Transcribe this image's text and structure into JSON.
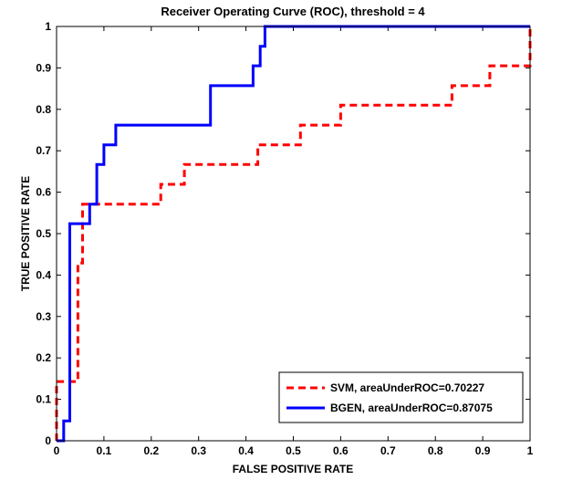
{
  "chart_data": {
    "type": "line",
    "title": "Receiver Operating Curve (ROC), threshold = 4",
    "xlabel": "FALSE POSITIVE RATE",
    "ylabel": "TRUE POSITIVE RATE",
    "xlim": [
      0,
      1
    ],
    "ylim": [
      0,
      1
    ],
    "xticks": [
      "0",
      "0.1",
      "0.2",
      "0.3",
      "0.4",
      "0.5",
      "0.6",
      "0.7",
      "0.8",
      "0.9",
      "1"
    ],
    "yticks": [
      "0",
      "0.1",
      "0.2",
      "0.3",
      "0.4",
      "0.5",
      "0.6",
      "0.7",
      "0.8",
      "0.9",
      "1"
    ],
    "grid": false,
    "legend_position": "bottom-right",
    "series": [
      {
        "name": "SVM, areaUnderROC=0.70227",
        "color": "#ff0000",
        "style": "dashed",
        "points": [
          [
            0,
            0
          ],
          [
            0,
            0.143
          ],
          [
            0.045,
            0.143
          ],
          [
            0.045,
            0.429
          ],
          [
            0.055,
            0.429
          ],
          [
            0.055,
            0.571
          ],
          [
            0.22,
            0.571
          ],
          [
            0.22,
            0.619
          ],
          [
            0.27,
            0.619
          ],
          [
            0.27,
            0.667
          ],
          [
            0.425,
            0.667
          ],
          [
            0.425,
            0.714
          ],
          [
            0.515,
            0.714
          ],
          [
            0.515,
            0.762
          ],
          [
            0.6,
            0.762
          ],
          [
            0.6,
            0.81
          ],
          [
            0.835,
            0.81
          ],
          [
            0.835,
            0.857
          ],
          [
            0.915,
            0.857
          ],
          [
            0.915,
            0.905
          ],
          [
            1,
            0.905
          ],
          [
            1,
            1
          ]
        ]
      },
      {
        "name": "BGEN, areaUnderROC=0.87075",
        "color": "#0000ff",
        "style": "solid",
        "points": [
          [
            0,
            0
          ],
          [
            0.015,
            0
          ],
          [
            0.015,
            0.048
          ],
          [
            0.028,
            0.048
          ],
          [
            0.028,
            0.524
          ],
          [
            0.07,
            0.524
          ],
          [
            0.07,
            0.571
          ],
          [
            0.085,
            0.571
          ],
          [
            0.085,
            0.667
          ],
          [
            0.1,
            0.667
          ],
          [
            0.1,
            0.714
          ],
          [
            0.125,
            0.714
          ],
          [
            0.125,
            0.762
          ],
          [
            0.325,
            0.762
          ],
          [
            0.325,
            0.857
          ],
          [
            0.415,
            0.857
          ],
          [
            0.415,
            0.905
          ],
          [
            0.43,
            0.905
          ],
          [
            0.43,
            0.952
          ],
          [
            0.44,
            0.952
          ],
          [
            0.44,
            1
          ],
          [
            1,
            1
          ]
        ]
      }
    ]
  }
}
